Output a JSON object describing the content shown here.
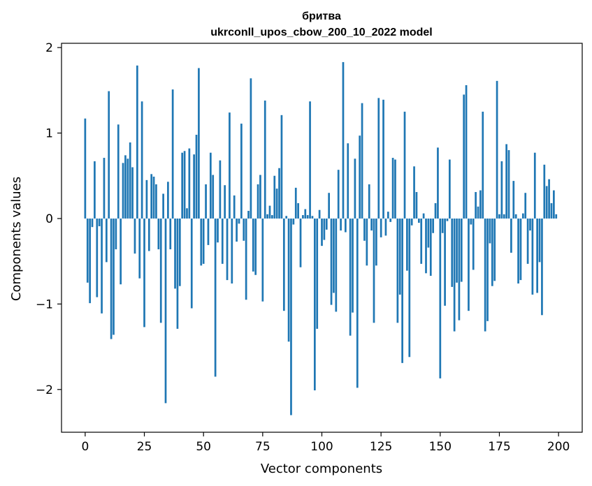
{
  "chart_data": {
    "type": "bar",
    "title": "бритва",
    "subtitle": "ukrconll_upos_cbow_200_10_2022 model",
    "xlabel": "Vector components",
    "ylabel": "Components values",
    "xlim": [
      -10,
      210
    ],
    "ylim": [
      -2.5,
      2.05
    ],
    "x_ticks": [
      0,
      25,
      50,
      75,
      100,
      125,
      150,
      175,
      200
    ],
    "x_tick_labels": [
      "0",
      "25",
      "50",
      "75",
      "100",
      "125",
      "150",
      "175",
      "200"
    ],
    "y_ticks": [
      -2,
      -1,
      0,
      1,
      2
    ],
    "y_tick_labels": [
      "−2",
      "−1",
      "0",
      "1",
      "2"
    ],
    "grid": false,
    "bar_color": "#1f77b4",
    "values": [
      1.17,
      -0.75,
      -0.99,
      -0.1,
      0.67,
      -0.92,
      -0.09,
      -1.11,
      0.71,
      -0.51,
      1.49,
      -1.41,
      -1.36,
      -0.36,
      1.1,
      -0.77,
      0.65,
      0.74,
      0.7,
      0.89,
      0.6,
      -0.41,
      1.79,
      -0.7,
      1.37,
      -1.27,
      0.45,
      -0.38,
      0.52,
      0.49,
      0.4,
      -0.36,
      -1.22,
      0.29,
      -2.16,
      0.43,
      -0.36,
      1.51,
      -0.82,
      -1.29,
      -0.79,
      0.77,
      0.79,
      0.12,
      0.82,
      -1.05,
      0.75,
      0.98,
      1.76,
      -0.55,
      -0.53,
      0.4,
      -0.31,
      0.77,
      0.51,
      -1.85,
      -0.28,
      0.68,
      -0.53,
      0.39,
      -0.72,
      1.24,
      -0.76,
      0.27,
      -0.27,
      -0.06,
      1.11,
      -0.26,
      -0.95,
      0.09,
      1.64,
      -0.62,
      -0.66,
      0.4,
      0.51,
      -0.97,
      1.38,
      0.05,
      0.15,
      0.04,
      0.5,
      0.35,
      0.59,
      1.21,
      -1.08,
      0.03,
      -1.44,
      -2.3,
      -0.07,
      0.36,
      0.18,
      -0.57,
      0.04,
      0.11,
      0.04,
      1.37,
      0.03,
      -2.01,
      -1.29,
      0.1,
      -0.32,
      -0.25,
      -0.13,
      0.3,
      -1.01,
      -0.87,
      -1.09,
      0.57,
      -0.14,
      1.83,
      -0.16,
      0.88,
      -1.37,
      -1.1,
      0.7,
      -1.98,
      0.97,
      1.35,
      -0.26,
      -0.55,
      0.4,
      -0.14,
      -1.22,
      -0.55,
      1.41,
      -0.22,
      1.39,
      -0.2,
      0.08,
      -0.04,
      0.71,
      0.69,
      -1.22,
      -0.89,
      -1.69,
      1.25,
      -0.61,
      -1.62,
      -0.08,
      0.61,
      0.31,
      -0.05,
      -0.53,
      0.06,
      -0.64,
      -0.34,
      -0.67,
      -0.17,
      0.18,
      0.83,
      -1.87,
      -0.17,
      -1.02,
      -0.03,
      0.69,
      -0.8,
      -1.32,
      -0.75,
      -1.19,
      -0.74,
      1.45,
      1.56,
      -1.08,
      -0.07,
      -0.6,
      0.31,
      0.14,
      0.33,
      1.25,
      -1.32,
      -1.2,
      -0.29,
      -0.79,
      -0.73,
      1.61,
      0.05,
      0.67,
      0.05,
      0.87,
      0.8,
      -0.4,
      0.44,
      0.05,
      -0.76,
      -0.72,
      0.06,
      0.3,
      -0.53,
      -0.14,
      -0.89,
      0.77,
      -0.87,
      -0.51,
      -1.13,
      0.63,
      0.38,
      0.46,
      0.18,
      0.33,
      0.05
    ]
  }
}
